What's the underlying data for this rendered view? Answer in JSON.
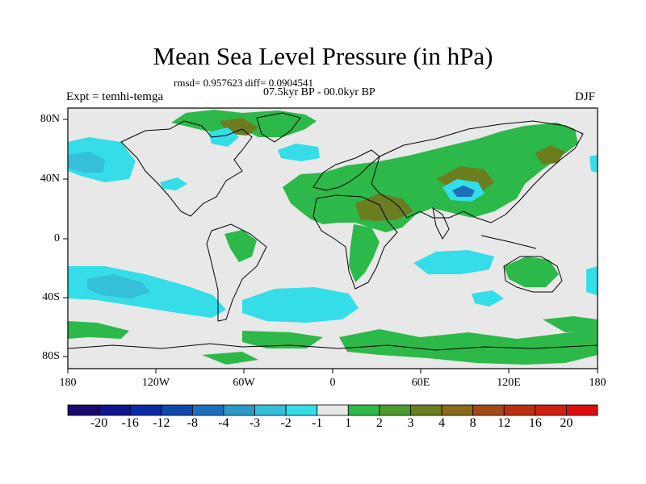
{
  "title": "Mean Sea Level Pressure (in hPa)",
  "stats": "rmsd= 0.957623 diff= 0.0904541",
  "period": "07.5kyr BP - 00.0kyr BP",
  "experiment": "Expt = temhi-temga",
  "season": "DJF",
  "lat_labels": [
    "80N",
    "40N",
    "0",
    "40S",
    "80S"
  ],
  "lon_labels": [
    "180",
    "120W",
    "60W",
    "0",
    "60E",
    "120E",
    "180"
  ],
  "colorbar": {
    "labels": [
      "-20",
      "-16",
      "-12",
      "-8",
      "-4",
      "-3",
      "-2",
      "-1",
      "1",
      "2",
      "3",
      "4",
      "8",
      "12",
      "16",
      "20"
    ],
    "colors": [
      "#1a0a6e",
      "#10148f",
      "#0a2aa6",
      "#0f48ad",
      "#1d6fbd",
      "#2b98c9",
      "#36bfd8",
      "#34dde8",
      "#e8e8e8",
      "#2db84a",
      "#4c9b2e",
      "#6b7d1f",
      "#8a6a19",
      "#a34a14",
      "#bb2e12",
      "#cc2010",
      "#dc0f0f"
    ]
  },
  "colors": {
    "neutral": "#e8e8e8",
    "pos_1": "#2db84a",
    "pos_3": "#6b7d1f",
    "neg_1": "#34dde8",
    "neg_2": "#36bfd8",
    "neg_3": "#2b98c9"
  }
}
